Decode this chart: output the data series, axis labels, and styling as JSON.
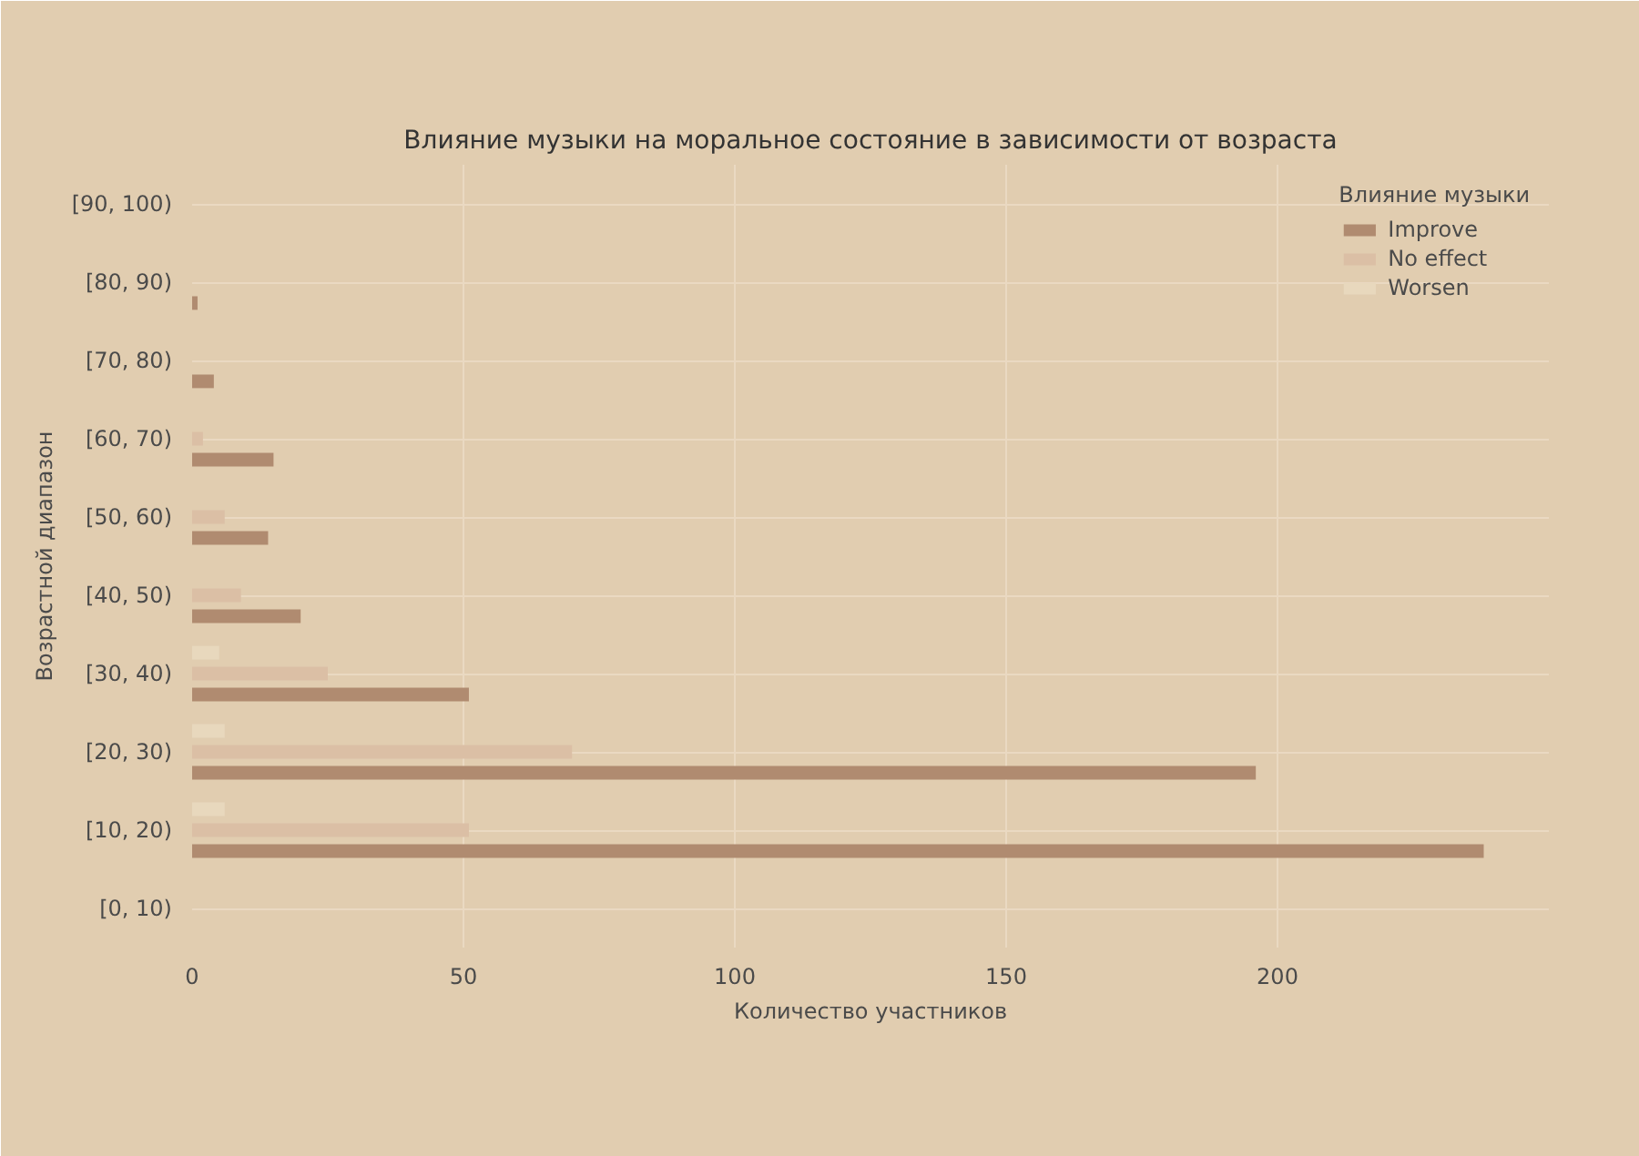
{
  "chart_data": {
    "type": "bar",
    "orientation": "horizontal",
    "title": "Влияние музыки на моральное состояние в зависимости от возраста",
    "xlabel": "Количество участников",
    "ylabel": "Возрастной диапазон",
    "legend_title": "Влияние музыки",
    "categories": [
      "[90, 100)",
      "[80, 90)",
      "[70, 80)",
      "[60, 70)",
      "[50, 60)",
      "[40, 50)",
      "[30, 40)",
      "[20, 30)",
      "[10, 20)",
      "[0, 10)"
    ],
    "series": [
      {
        "name": "Improve",
        "color": "#b08b70",
        "values": [
          0,
          1,
          4,
          15,
          14,
          20,
          51,
          196,
          238,
          0
        ]
      },
      {
        "name": "No effect",
        "color": "#dbbfa5",
        "values": [
          0,
          0,
          0,
          2,
          6,
          9,
          25,
          70,
          51,
          0
        ]
      },
      {
        "name": "Worsen",
        "color": "#e8d8bd",
        "values": [
          0,
          0,
          0,
          0,
          0,
          0,
          5,
          6,
          6,
          0
        ]
      }
    ],
    "xlim": [
      0,
      250
    ],
    "xticks": [
      0,
      50,
      100,
      150,
      200
    ],
    "grid": true,
    "legend": "top right"
  }
}
